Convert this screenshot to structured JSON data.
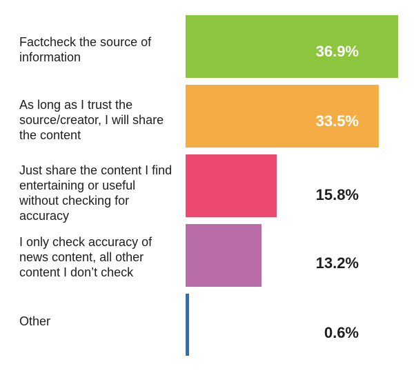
{
  "chart_data": {
    "type": "bar",
    "orientation": "horizontal",
    "categories": [
      "Factcheck the source of information",
      "As long as I trust the source/creator, I will share the content",
      "Just share the content I find entertaining or useful without checking for accuracy",
      "I only check accuracy of news content, all other content I don’t check",
      "Other"
    ],
    "values": [
      36.9,
      33.5,
      15.8,
      13.2,
      0.6
    ],
    "value_labels": [
      "36.9%",
      "33.5%",
      "15.8%",
      "13.2%",
      "0.6%"
    ],
    "colors": [
      "#8cc63e",
      "#f4ad45",
      "#ec4a6e",
      "#b86ca8",
      "#2e6fb5"
    ],
    "value_label_colors": [
      "#ffffff",
      "#ffffff",
      "#1e1e1e",
      "#1e1e1e",
      "#1e1e1e"
    ],
    "title": "",
    "xlabel": "",
    "ylabel": "",
    "grid": false,
    "legend": "none"
  }
}
